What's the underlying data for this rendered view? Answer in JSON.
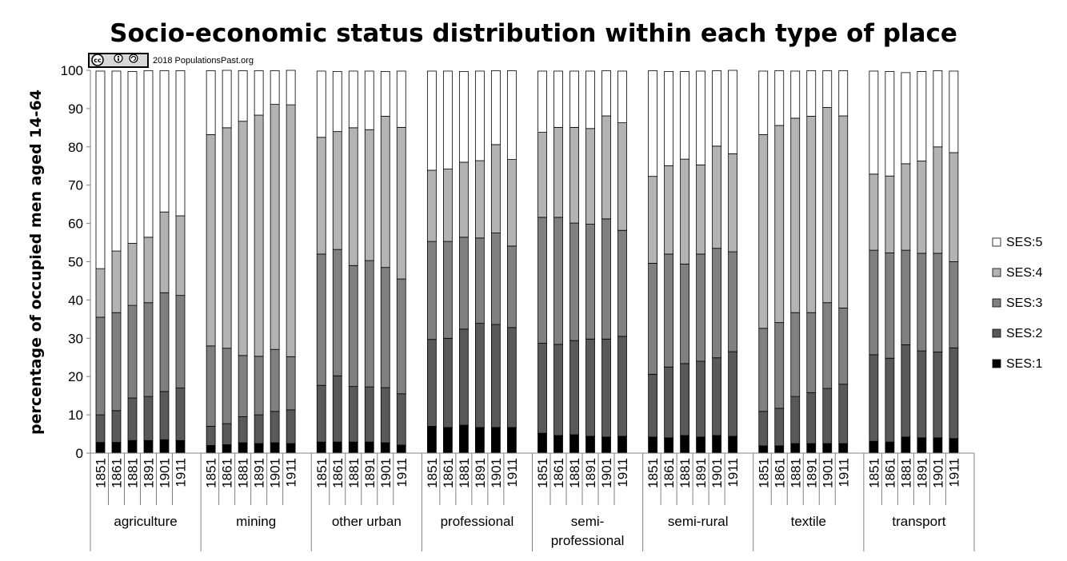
{
  "chart_data": {
    "type": "bar",
    "stacked": true,
    "title": "Socio-economic status distribution within each type of place",
    "ylabel": "percentage of occupied men aged 14-64",
    "xlabel": "",
    "ylim": [
      0,
      100
    ],
    "yticks": [
      0,
      10,
      20,
      30,
      40,
      50,
      60,
      70,
      80,
      90,
      100
    ],
    "grid": false,
    "legend_position": "right",
    "years": [
      "1851",
      "1861",
      "1881",
      "1891",
      "1901",
      "1911"
    ],
    "groups": [
      "agriculture",
      "mining",
      "other urban",
      "professional",
      "semi-professional",
      "semi-rural",
      "textile",
      "transport"
    ],
    "group_label_lines": {
      "semi-professional": [
        "semi-",
        "professional"
      ]
    },
    "series": [
      {
        "name": "SES:1",
        "color": "#000000",
        "values": [
          [
            2.8,
            2.8,
            3.3,
            3.3,
            3.5,
            3.3
          ],
          [
            2.0,
            2.2,
            2.7,
            2.5,
            2.7,
            2.5
          ],
          [
            2.9,
            2.9,
            2.9,
            2.9,
            2.7,
            2.1
          ],
          [
            7.0,
            6.7,
            7.3,
            6.7,
            6.7,
            6.7
          ],
          [
            5.2,
            4.6,
            4.8,
            4.4,
            4.2,
            4.4
          ],
          [
            4.2,
            4.0,
            4.6,
            4.2,
            4.6,
            4.4
          ],
          [
            1.9,
            1.9,
            2.5,
            2.5,
            2.5,
            2.5
          ],
          [
            3.1,
            2.9,
            4.2,
            4.0,
            4.0,
            3.8
          ]
        ]
      },
      {
        "name": "SES:2",
        "color": "#595959",
        "values": [
          [
            7.2,
            8.3,
            11.1,
            11.5,
            12.6,
            13.7
          ],
          [
            5.0,
            5.5,
            6.8,
            7.5,
            8.2,
            8.8
          ],
          [
            14.8,
            17.3,
            14.5,
            14.4,
            14.4,
            13.4
          ],
          [
            22.7,
            23.3,
            25.1,
            27.2,
            26.9,
            26.1
          ],
          [
            23.5,
            23.8,
            24.6,
            25.4,
            25.6,
            26.1
          ],
          [
            16.4,
            18.5,
            18.8,
            19.8,
            20.3,
            22.1
          ],
          [
            9.0,
            9.8,
            12.3,
            13.3,
            14.4,
            15.5
          ],
          [
            22.6,
            21.9,
            24.1,
            22.7,
            22.4,
            23.7
          ]
        ]
      },
      {
        "name": "SES:3",
        "color": "#808080",
        "values": [
          [
            25.5,
            25.6,
            24.2,
            24.5,
            25.8,
            24.2
          ],
          [
            21.0,
            19.7,
            16.0,
            15.3,
            16.2,
            13.9
          ],
          [
            34.3,
            33.0,
            31.6,
            33.0,
            31.4,
            30.0
          ],
          [
            25.6,
            25.3,
            24.0,
            22.3,
            23.9,
            21.3
          ],
          [
            32.9,
            33.2,
            30.7,
            30.0,
            31.4,
            27.7
          ],
          [
            29.0,
            29.5,
            26.0,
            28.0,
            28.6,
            26.1
          ],
          [
            21.7,
            22.4,
            21.9,
            20.9,
            22.4,
            19.9
          ],
          [
            27.3,
            27.5,
            24.7,
            25.5,
            25.8,
            22.5
          ]
        ]
      },
      {
        "name": "SES:4",
        "color": "#b3b3b3",
        "values": [
          [
            12.7,
            16.1,
            16.2,
            17.1,
            21.1,
            20.8
          ],
          [
            55.2,
            57.6,
            61.2,
            63.0,
            64.0,
            65.8
          ],
          [
            30.5,
            30.8,
            36.0,
            34.2,
            39.5,
            39.6
          ],
          [
            18.6,
            18.9,
            19.6,
            20.2,
            23.1,
            22.6
          ],
          [
            22.2,
            23.5,
            25.0,
            25.0,
            26.9,
            28.1
          ],
          [
            22.7,
            23.1,
            27.4,
            23.3,
            26.7,
            25.6
          ],
          [
            50.6,
            51.5,
            50.8,
            51.3,
            51.0,
            50.2
          ],
          [
            19.9,
            20.1,
            22.6,
            24.1,
            27.8,
            28.5
          ]
        ]
      },
      {
        "name": "SES:5",
        "color": "#ffffff",
        "values": [
          [
            51.6,
            47.0,
            44.9,
            43.5,
            36.9,
            37.9
          ],
          [
            16.7,
            15.0,
            13.2,
            11.6,
            8.8,
            9.0
          ],
          [
            17.3,
            15.7,
            14.8,
            15.3,
            11.7,
            14.7
          ],
          [
            25.9,
            25.6,
            23.7,
            23.4,
            19.3,
            23.2
          ],
          [
            16.0,
            14.7,
            14.7,
            15.0,
            11.8,
            13.5
          ],
          [
            27.6,
            24.6,
            22.9,
            24.5,
            19.7,
            21.8
          ],
          [
            16.6,
            14.3,
            12.3,
            11.9,
            9.6,
            11.8
          ],
          [
            26.9,
            27.3,
            23.8,
            23.4,
            19.9,
            21.3
          ]
        ]
      }
    ],
    "legend_order": [
      "SES:5",
      "SES:4",
      "SES:3",
      "SES:2",
      "SES:1"
    ]
  },
  "credit": {
    "text": "2018 PopulationsPast.org",
    "badge_icons": [
      "cc-icon",
      "by-icon",
      "sa-icon"
    ]
  }
}
